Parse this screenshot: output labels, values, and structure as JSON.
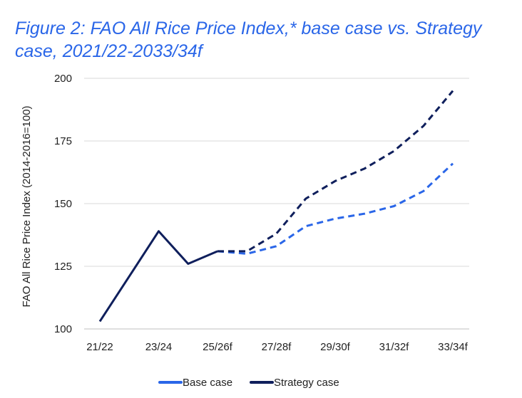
{
  "chart_data": {
    "type": "line",
    "title": "Figure 2: FAO All Rice Price Index,* base case vs. Strategy case, 2021/22-2033/34f",
    "title_line1": "Figure 2: FAO All Rice Price Index,* base case vs. Strategy",
    "title_line2": "case, 2021/22-2033/34f",
    "xlabel": "",
    "ylabel": "FAO All Rice Price Index (2014-2016=100)",
    "ylim": [
      100,
      200
    ],
    "yticks": [
      100,
      125,
      150,
      175,
      200
    ],
    "ytick_labels": [
      "100",
      "125",
      "150",
      "175",
      "200"
    ],
    "categories": [
      "21/22",
      "22/23",
      "23/24",
      "24/25",
      "25/26f",
      "26/27f",
      "27/28f",
      "28/29f",
      "29/30f",
      "30/31f",
      "31/32f",
      "32/33f",
      "33/34f"
    ],
    "xtick_labels": [
      "21/22",
      "23/24",
      "25/26f",
      "27/28f",
      "29/30f",
      "31/32f",
      "33/34f"
    ],
    "grid": true,
    "legend_position": "bottom",
    "series": [
      {
        "name": "Base case",
        "color": "#2a66e8",
        "values": [
          null,
          null,
          null,
          null,
          131,
          130,
          133,
          141,
          144,
          146,
          149,
          155,
          166
        ]
      },
      {
        "name": "Strategy case",
        "color": "#0f1f5c",
        "values": [
          103,
          121,
          139,
          126,
          131,
          131,
          138,
          152,
          159,
          164,
          171,
          181,
          195
        ]
      }
    ],
    "historical_until_index": 4
  }
}
